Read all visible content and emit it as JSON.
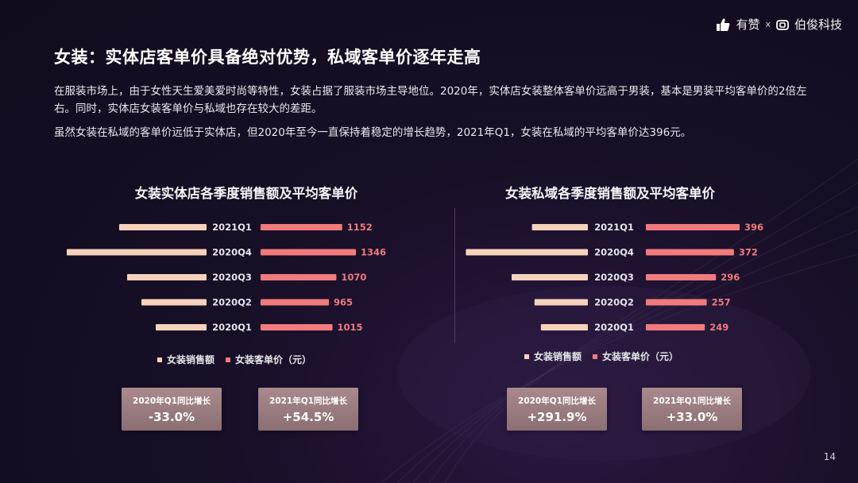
{
  "brand": {
    "left": "有赞",
    "sep": "x",
    "right": "伯俊科技"
  },
  "page_title": "女装：实体店客单价具备绝对优势，私域客单价逐年走高",
  "paragraphs": [
    "在服装市场上，由于女性天生爱美爱时尚等特性，女装占据了服装市场主导地位。2020年，实体店女装整体客单价远高于男装，基本是男装平均客单价的2倍左右。同时，实体店女装客单价与私域也存在较大的差距。",
    "虽然女装在私域的客单价远低于实体店，但2020年至今一直保持着稳定的增长趋势，2021年Q1，女装在私域的平均客单价达396元。"
  ],
  "legend": {
    "sales": "女装销售额",
    "price_store": "女装客单价（元）",
    "price_private": "女装客单价（元）"
  },
  "colors": {
    "sales_bar": "#f7d2bb",
    "price_bar": "#f07a7c",
    "price_label": "#f07a7c"
  },
  "chart_data": [
    {
      "type": "bar",
      "title": "女装实体店各季度销售额及平均客单价",
      "categories": [
        "2021Q1",
        "2020Q4",
        "2020Q3",
        "2020Q2",
        "2020Q1"
      ],
      "series": [
        {
          "name": "女装销售额",
          "values": [
            0.55,
            0.88,
            0.5,
            0.41,
            0.32
          ]
        },
        {
          "name": "女装客单价（元）",
          "values": [
            1152,
            1346,
            1070,
            965,
            1015
          ]
        }
      ],
      "layout": "butterfly",
      "legend_position": "bottom",
      "growth_cards": [
        {
          "label": "2020年Q1同比增长",
          "value": "-33.0%"
        },
        {
          "label": "2021年Q1同比增长",
          "value": "+54.5%"
        }
      ]
    },
    {
      "type": "bar",
      "title": "女装私域各季度销售额及平均客单价",
      "categories": [
        "2021Q1",
        "2020Q4",
        "2020Q3",
        "2020Q2",
        "2020Q1"
      ],
      "series": [
        {
          "name": "女装销售额",
          "values": [
            0.44,
            0.96,
            0.6,
            0.42,
            0.37
          ]
        },
        {
          "name": "女装客单价（元）",
          "values": [
            396,
            372,
            296,
            257,
            249
          ]
        }
      ],
      "layout": "butterfly",
      "legend_position": "bottom",
      "growth_cards": [
        {
          "label": "2020年Q1同比增长",
          "value": "+291.9%"
        },
        {
          "label": "2021年Q1同比增长",
          "value": "+33.0%"
        }
      ]
    }
  ],
  "page_number": "14"
}
